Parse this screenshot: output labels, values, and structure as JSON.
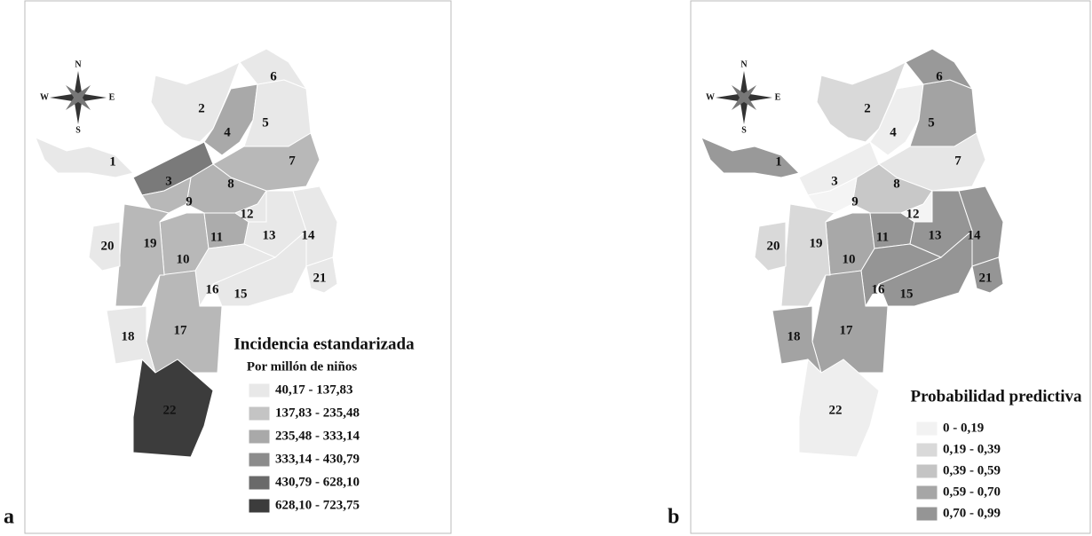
{
  "panels": [
    {
      "label": "a",
      "compass": {
        "n": "N",
        "s": "S",
        "e": "E",
        "w": "W"
      },
      "legend": {
        "title": "Incidencia estandarizada",
        "subtitle": "Por millón de niños",
        "items": [
          {
            "label": "40,17 - 137,83",
            "color": "#e8e8e8"
          },
          {
            "label": "137,83 - 235,48",
            "color": "#c4c4c4"
          },
          {
            "label": "235,48 - 333,14",
            "color": "#a9a9a9"
          },
          {
            "label": "333,14 - 430,79",
            "color": "#8c8c8c"
          },
          {
            "label": "430,79 - 628,10",
            "color": "#6a6a6a"
          },
          {
            "label": "628,10 - 723,75",
            "color": "#3c3c3c"
          }
        ]
      },
      "districts": [
        {
          "label": "1",
          "color": "#e8e8e8"
        },
        {
          "label": "2",
          "color": "#e8e8e8"
        },
        {
          "label": "3",
          "color": "#7a7a7a"
        },
        {
          "label": "4",
          "color": "#a9a9a9"
        },
        {
          "label": "5",
          "color": "#e8e8e8"
        },
        {
          "label": "6",
          "color": "#e8e8e8"
        },
        {
          "label": "7",
          "color": "#b8b8b8"
        },
        {
          "label": "8",
          "color": "#b3b3b3"
        },
        {
          "label": "9",
          "color": "#b8b8b8"
        },
        {
          "label": "10",
          "color": "#b8b8b8"
        },
        {
          "label": "11",
          "color": "#acacac"
        },
        {
          "label": "12",
          "color": "#e8e8e8"
        },
        {
          "label": "13",
          "color": "#e8e8e8"
        },
        {
          "label": "14",
          "color": "#e8e8e8"
        },
        {
          "label": "15",
          "color": "#e8e8e8"
        },
        {
          "label": "16",
          "color": "#e8e8e8"
        },
        {
          "label": "17",
          "color": "#b8b8b8"
        },
        {
          "label": "18",
          "color": "#e8e8e8"
        },
        {
          "label": "19",
          "color": "#b8b8b8"
        },
        {
          "label": "20",
          "color": "#e8e8e8"
        },
        {
          "label": "21",
          "color": "#e8e8e8"
        },
        {
          "label": "22",
          "color": "#3c3c3c"
        }
      ]
    },
    {
      "label": "b",
      "compass": {
        "n": "N",
        "s": "S",
        "e": "E",
        "w": "W"
      },
      "legend": {
        "title": "Probabilidad predictiva",
        "items": [
          {
            "label": "0 - 0,19",
            "color": "#f2f2f2"
          },
          {
            "label": "0,19 - 0,39",
            "color": "#d9d9d9"
          },
          {
            "label": "0,39 - 0,59",
            "color": "#c4c4c4"
          },
          {
            "label": "0,59 - 0,70",
            "color": "#a6a6a6"
          },
          {
            "label": "0,70 - 0,99",
            "color": "#959595"
          }
        ]
      },
      "districts": [
        {
          "label": "1",
          "color": "#999999"
        },
        {
          "label": "2",
          "color": "#d9d9d9"
        },
        {
          "label": "3",
          "color": "#eeeeee"
        },
        {
          "label": "4",
          "color": "#eeeeee"
        },
        {
          "label": "5",
          "color": "#a3a3a3"
        },
        {
          "label": "6",
          "color": "#999999"
        },
        {
          "label": "7",
          "color": "#e6e6e6"
        },
        {
          "label": "8",
          "color": "#c8c8c8"
        },
        {
          "label": "9",
          "color": "#f4f4f4"
        },
        {
          "label": "10",
          "color": "#a8a8a8"
        },
        {
          "label": "11",
          "color": "#959595"
        },
        {
          "label": "12",
          "color": "#f4f4f4"
        },
        {
          "label": "13",
          "color": "#959595"
        },
        {
          "label": "14",
          "color": "#959595"
        },
        {
          "label": "15",
          "color": "#959595"
        },
        {
          "label": "16",
          "color": "#959595"
        },
        {
          "label": "17",
          "color": "#a3a3a3"
        },
        {
          "label": "18",
          "color": "#a3a3a3"
        },
        {
          "label": "19",
          "color": "#d9d9d9"
        },
        {
          "label": "20",
          "color": "#d9d9d9"
        },
        {
          "label": "21",
          "color": "#959595"
        },
        {
          "label": "22",
          "color": "#eeeeee"
        }
      ]
    }
  ]
}
